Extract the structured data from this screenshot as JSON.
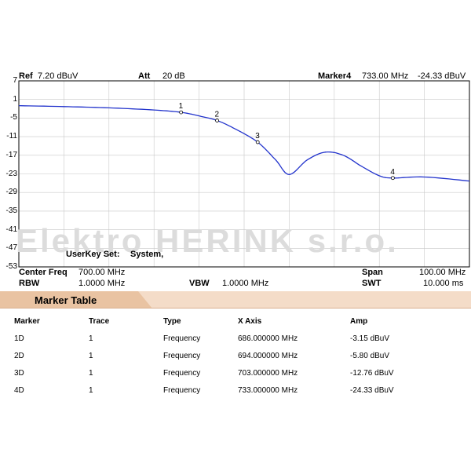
{
  "header": {
    "ref_label": "Ref",
    "ref_value": "7.20 dBuV",
    "att_label": "Att",
    "att_value": "20 dB",
    "marker_label": "Marker4",
    "marker_freq": "733.00 MHz",
    "marker_amp": "-24.33 dBuV"
  },
  "watermark": "Elektro HERINK s.r.o.",
  "userkey": {
    "label": "UserKey Set:",
    "value": "System,"
  },
  "footer": {
    "center_label": "Center Freq",
    "center_value": "700.00 MHz",
    "span_label": "Span",
    "span_value": "100.00 MHz",
    "rbw_label": "RBW",
    "rbw_value": "1.0000 MHz",
    "vbw_label": "VBW",
    "vbw_value": "1.0000 MHz",
    "swt_label": "SWT",
    "swt_value": "10.000 ms"
  },
  "chart_data": {
    "type": "line",
    "y_ticks": [
      "7",
      "1",
      "-5",
      "-11",
      "-17",
      "-23",
      "-29",
      "-35",
      "-41",
      "-47",
      "-53"
    ],
    "ylim": [
      -53,
      7
    ],
    "xlim": [
      650,
      750
    ],
    "x_unit": "MHz",
    "y_unit": "dBuV",
    "grid": true,
    "line_color": "#2233cc",
    "series": [
      {
        "x": [
          650,
          660,
          670,
          680,
          686,
          690,
          694,
          698,
          703,
          707,
          710,
          714,
          718,
          722,
          726,
          730,
          733,
          740,
          750
        ],
        "y": [
          -1.0,
          -1.3,
          -1.7,
          -2.4,
          -3.15,
          -4.3,
          -5.8,
          -8.5,
          -12.76,
          -18.5,
          -23.2,
          -18.5,
          -16.0,
          -17.0,
          -20.5,
          -23.6,
          -24.33,
          -24.0,
          -25.3
        ]
      }
    ],
    "markers": [
      {
        "label": "1",
        "x": 686,
        "y": -3.15
      },
      {
        "label": "2",
        "x": 694,
        "y": -5.8
      },
      {
        "label": "3",
        "x": 703,
        "y": -12.76
      },
      {
        "label": "4",
        "x": 733,
        "y": -24.33
      }
    ]
  },
  "marker_table": {
    "title": "Marker Table",
    "columns": [
      "Marker",
      "Trace",
      "Type",
      "X Axis",
      "Amp"
    ],
    "rows": [
      [
        "1D",
        "1",
        "Frequency",
        "686.000000 MHz",
        "-3.15 dBuV"
      ],
      [
        "2D",
        "1",
        "Frequency",
        "694.000000 MHz",
        "-5.80 dBuV"
      ],
      [
        "3D",
        "1",
        "Frequency",
        "703.000000 MHz",
        "-12.76 dBuV"
      ],
      [
        "4D",
        "1",
        "Frequency",
        "733.000000 MHz",
        "-24.33 dBuV"
      ]
    ]
  }
}
